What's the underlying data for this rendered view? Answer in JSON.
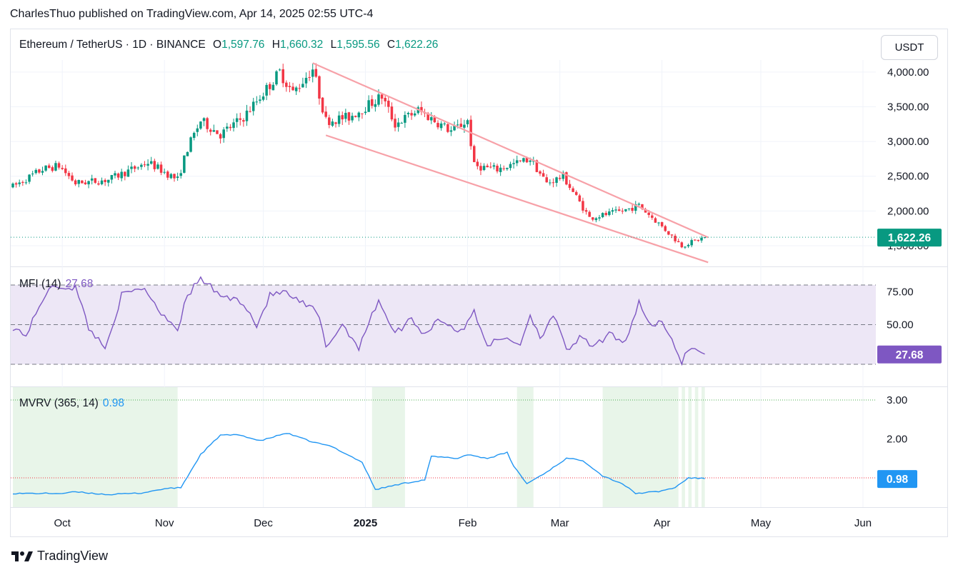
{
  "header": {
    "publisher": "CharlesThuo published on TradingView.com, Apr 14, 2025 02:55 UTC-4"
  },
  "currency": "USDT",
  "legend": {
    "symbol": "Ethereum / TetherUS · 1D · BINANCE",
    "open_label": "O",
    "open": "1,597.76",
    "high_label": "H",
    "high": "1,660.32",
    "low_label": "L",
    "low": "1,595.56",
    "close_label": "C",
    "close": "1,622.26"
  },
  "mfi_legend": {
    "label": "MFI (14)",
    "value": "27.68"
  },
  "mvrv_legend": {
    "label": "MVRV (365, 14)",
    "value": "0.98"
  },
  "footer": {
    "brand": "TradingView"
  },
  "colors": {
    "up": "#089981",
    "down": "#f23645",
    "channel": "#f7a1a8",
    "mfi": "#7e57c2",
    "mfi_band": "#ede7f6",
    "mvrv": "#2196f3",
    "mvrv_zone": "#e8f5e9"
  },
  "chart_data": [
    {
      "type": "candlestick",
      "title": "Ethereum / TetherUS · 1D · BINANCE",
      "ylim": [
        1350,
        4150
      ],
      "y_ticks": [
        "4,000.00",
        "3,500.00",
        "3,000.00",
        "2,500.00",
        "2,000.00",
        "1,500.00"
      ],
      "x_ticks": [
        "Oct",
        "Nov",
        "Dec",
        "2025",
        "Feb",
        "Mar",
        "Apr",
        "May",
        "Jun"
      ],
      "last_price_label": "1,622.26",
      "last_price": 1622.26,
      "anchors": [
        [
          "2024-09-16",
          2350
        ],
        [
          "2024-09-25",
          2600
        ],
        [
          "2024-09-30",
          2650
        ],
        [
          "2024-10-05",
          2400
        ],
        [
          "2024-10-15",
          2450
        ],
        [
          "2024-10-27",
          2700
        ],
        [
          "2024-11-05",
          2450
        ],
        [
          "2024-11-08",
          2900
        ],
        [
          "2024-11-12",
          3300
        ],
        [
          "2024-11-18",
          3100
        ],
        [
          "2024-11-25",
          3350
        ],
        [
          "2024-12-01",
          3700
        ],
        [
          "2024-12-06",
          4000
        ],
        [
          "2024-12-10",
          3700
        ],
        [
          "2024-12-16",
          4050
        ],
        [
          "2024-12-20",
          3300
        ],
        [
          "2024-12-27",
          3350
        ],
        [
          "2025-01-06",
          3650
        ],
        [
          "2025-01-10",
          3250
        ],
        [
          "2025-01-17",
          3450
        ],
        [
          "2025-01-27",
          3150
        ],
        [
          "2025-02-01",
          3300
        ],
        [
          "2025-02-03",
          2650
        ],
        [
          "2025-02-10",
          2600
        ],
        [
          "2025-02-20",
          2750
        ],
        [
          "2025-02-25",
          2400
        ],
        [
          "2025-03-02",
          2500
        ],
        [
          "2025-03-10",
          1900
        ],
        [
          "2025-03-20",
          2000
        ],
        [
          "2025-03-25",
          2080
        ],
        [
          "2025-03-31",
          1820
        ],
        [
          "2025-04-07",
          1500
        ],
        [
          "2025-04-14",
          1622
        ]
      ],
      "channel": {
        "upper": [
          [
            "2024-12-16",
            4130
          ],
          [
            "2025-04-15",
            1620
          ]
        ],
        "lower": [
          [
            "2024-12-20",
            3090
          ],
          [
            "2025-04-15",
            1260
          ]
        ]
      }
    },
    {
      "type": "line",
      "title": "MFI (14)",
      "ylim": [
        15,
        90
      ],
      "y_ticks": [
        "75.00",
        "50.00"
      ],
      "bands": [
        80,
        20
      ],
      "last_value": 27.68,
      "last_label": "27.68",
      "anchors": [
        [
          "2024-09-16",
          48
        ],
        [
          "2024-09-20",
          42
        ],
        [
          "2024-09-26",
          74
        ],
        [
          "2024-09-29",
          79
        ],
        [
          "2024-10-05",
          78
        ],
        [
          "2024-10-09",
          48
        ],
        [
          "2024-10-14",
          32
        ],
        [
          "2024-10-19",
          72
        ],
        [
          "2024-10-26",
          78
        ],
        [
          "2024-10-30",
          62
        ],
        [
          "2024-11-05",
          47
        ],
        [
          "2024-11-08",
          72
        ],
        [
          "2024-11-12",
          85
        ],
        [
          "2024-11-18",
          72
        ],
        [
          "2024-11-25",
          67
        ],
        [
          "2024-11-29",
          49
        ],
        [
          "2024-12-03",
          72
        ],
        [
          "2024-12-07",
          75
        ],
        [
          "2024-12-12",
          67
        ],
        [
          "2024-12-16",
          62
        ],
        [
          "2024-12-18",
          55
        ],
        [
          "2024-12-20",
          33
        ],
        [
          "2024-12-25",
          50
        ],
        [
          "2024-12-30",
          33
        ],
        [
          "2025-01-05",
          69
        ],
        [
          "2025-01-10",
          43
        ],
        [
          "2025-01-15",
          55
        ],
        [
          "2025-01-19",
          42
        ],
        [
          "2025-01-23",
          55
        ],
        [
          "2025-01-30",
          44
        ],
        [
          "2025-02-03",
          60
        ],
        [
          "2025-02-07",
          35
        ],
        [
          "2025-02-13",
          40
        ],
        [
          "2025-02-17",
          35
        ],
        [
          "2025-02-20",
          58
        ],
        [
          "2025-02-23",
          40
        ],
        [
          "2025-02-27",
          58
        ],
        [
          "2025-03-03",
          30
        ],
        [
          "2025-03-07",
          40
        ],
        [
          "2025-03-11",
          33
        ],
        [
          "2025-03-16",
          42
        ],
        [
          "2025-03-21",
          38
        ],
        [
          "2025-03-25",
          67
        ],
        [
          "2025-03-29",
          48
        ],
        [
          "2025-04-01",
          52
        ],
        [
          "2025-04-07",
          22
        ],
        [
          "2025-04-09",
          32
        ],
        [
          "2025-04-12",
          31
        ],
        [
          "2025-04-14",
          27.68
        ]
      ]
    },
    {
      "type": "line",
      "title": "MVRV (365, 14)",
      "ylim": [
        0.25,
        3.2
      ],
      "y_ticks": [
        "3.00",
        "2.00"
      ],
      "last_value": 0.98,
      "last_label": "0.98",
      "zones": [
        [
          "2024-09-16",
          "2024-11-05"
        ],
        [
          "2025-01-03",
          "2025-01-13"
        ],
        [
          "2025-02-16",
          "2025-02-21"
        ],
        [
          "2025-03-14",
          "2025-04-06"
        ],
        [
          "2025-04-07",
          "2025-04-08"
        ],
        [
          "2025-04-09",
          "2025-04-10"
        ],
        [
          "2025-04-11",
          "2025-04-12"
        ],
        [
          "2025-04-13",
          "2025-04-14"
        ]
      ],
      "anchors": [
        [
          "2024-09-16",
          0.6
        ],
        [
          "2024-10-01",
          0.6
        ],
        [
          "2024-10-05",
          0.64
        ],
        [
          "2024-10-15",
          0.57
        ],
        [
          "2024-10-25",
          0.61
        ],
        [
          "2024-11-01",
          0.72
        ],
        [
          "2024-11-06",
          0.75
        ],
        [
          "2024-11-12",
          1.6
        ],
        [
          "2024-11-18",
          2.1
        ],
        [
          "2024-11-24",
          2.1
        ],
        [
          "2024-11-30",
          1.95
        ],
        [
          "2024-12-08",
          2.15
        ],
        [
          "2024-12-16",
          1.92
        ],
        [
          "2024-12-22",
          1.8
        ],
        [
          "2024-12-31",
          1.4
        ],
        [
          "2025-01-04",
          0.7
        ],
        [
          "2025-01-12",
          0.85
        ],
        [
          "2025-01-19",
          0.95
        ],
        [
          "2025-01-21",
          1.55
        ],
        [
          "2025-01-29",
          1.5
        ],
        [
          "2025-02-01",
          1.6
        ],
        [
          "2025-02-07",
          1.5
        ],
        [
          "2025-02-13",
          1.65
        ],
        [
          "2025-02-15",
          1.3
        ],
        [
          "2025-02-19",
          0.85
        ],
        [
          "2025-02-25",
          1.15
        ],
        [
          "2025-03-03",
          1.5
        ],
        [
          "2025-03-08",
          1.45
        ],
        [
          "2025-03-14",
          1.05
        ],
        [
          "2025-03-20",
          0.85
        ],
        [
          "2025-03-24",
          0.6
        ],
        [
          "2025-03-31",
          0.65
        ],
        [
          "2025-04-05",
          0.75
        ],
        [
          "2025-04-09",
          1.0
        ],
        [
          "2025-04-14",
          0.98
        ]
      ]
    }
  ]
}
